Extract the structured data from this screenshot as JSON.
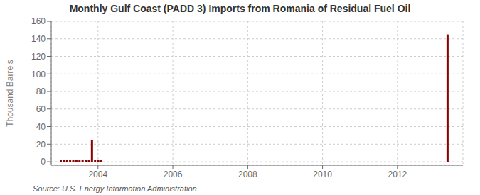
{
  "chart_data": {
    "type": "bar",
    "title": "Monthly Gulf Coast (PADD 3) Imports from Romania of Residual Fuel Oil",
    "y_label": "Thousand Barrels",
    "source": "Source: U.S. Energy Information Administration",
    "x": [
      2003,
      2003.0833333333333,
      2003.1666666666667,
      2003.25,
      2003.3333333333333,
      2003.4166666666667,
      2003.5,
      2003.5833333333333,
      2003.6666666666667,
      2003.75,
      2003.8333333333333,
      2003.9166666666667,
      2004,
      2004.0833333333333,
      2013.3333333333333
    ],
    "values": [
      2,
      2,
      2,
      2,
      2,
      2,
      2,
      2,
      2,
      2,
      25,
      2,
      2,
      2,
      145
    ],
    "color": "#8b0000",
    "xlim": [
      2002.75,
      2013.75
    ],
    "xticks": [
      2004,
      2006,
      2008,
      2010,
      2012
    ],
    "ylim": [
      -4,
      160
    ],
    "yticks": [
      0,
      20,
      40,
      60,
      80,
      100,
      120,
      140,
      160
    ],
    "grid": true
  }
}
